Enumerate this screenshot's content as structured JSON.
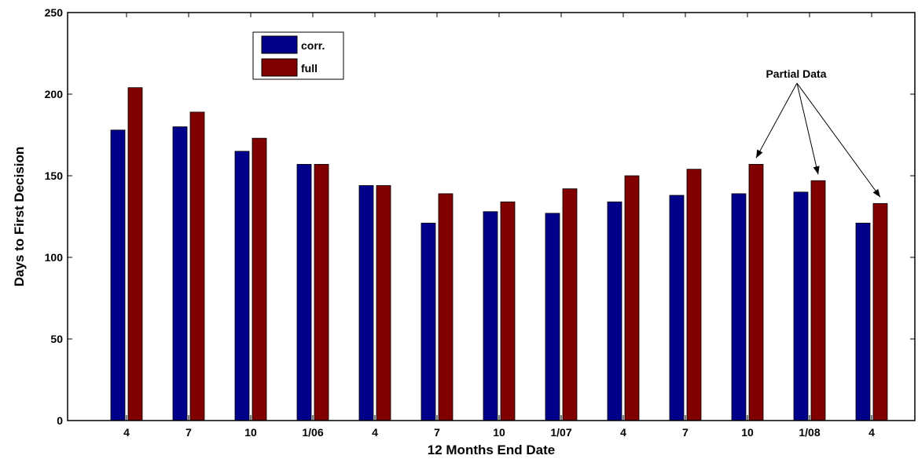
{
  "chart_data": {
    "type": "bar",
    "title": "",
    "xlabel": "12 Months End Date",
    "ylabel": "Days to First Decision",
    "categories": [
      "4",
      "7",
      "10",
      "1/06",
      "4",
      "7",
      "10",
      "1/07",
      "4",
      "7",
      "10",
      "1/08",
      "4"
    ],
    "series": [
      {
        "name": "corr.",
        "color": "#00008B",
        "values": [
          178,
          180,
          165,
          157,
          144,
          121,
          128,
          127,
          134,
          138,
          139,
          140,
          121
        ]
      },
      {
        "name": "full",
        "color": "#800000",
        "values": [
          204,
          189,
          173,
          157,
          144,
          139,
          134,
          142,
          150,
          154,
          157,
          147,
          133
        ]
      }
    ],
    "ylim": [
      0,
      250
    ],
    "yticks": [
      0,
      50,
      100,
      150,
      200,
      250
    ],
    "grid": false,
    "legend": "top-left",
    "annotations": [
      {
        "text": "Partial Data",
        "targets": [
          10,
          11,
          12
        ]
      }
    ]
  }
}
